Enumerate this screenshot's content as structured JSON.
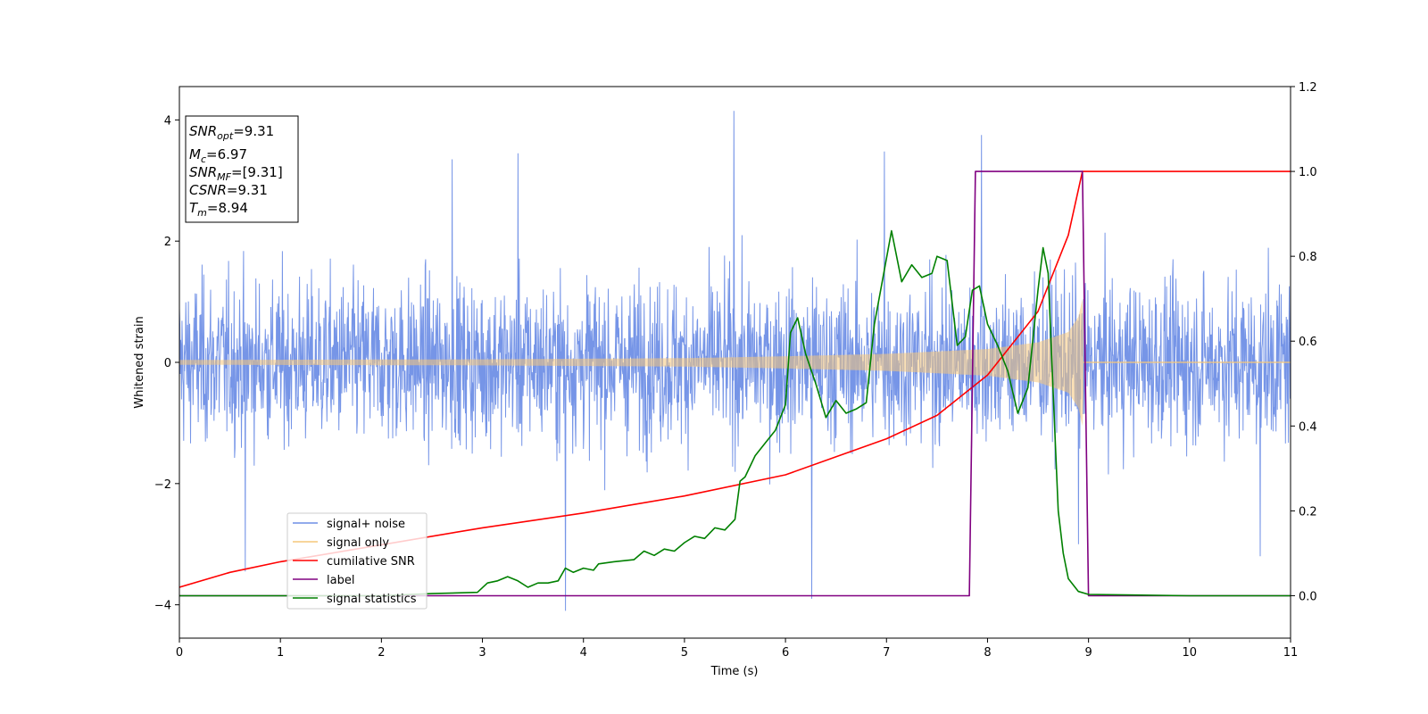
{
  "chart_data": {
    "type": "line",
    "xlabel": "Time (s)",
    "ylabel": "Whitened strain",
    "xlim": [
      0,
      11
    ],
    "ylim_left": [
      -4.55,
      4.55
    ],
    "ylim_right": [
      -0.1,
      1.2
    ],
    "x_ticks": [
      0,
      1,
      2,
      3,
      4,
      5,
      6,
      7,
      8,
      9,
      10,
      11
    ],
    "y_left_ticks": [
      -4,
      -2,
      0,
      2,
      4
    ],
    "y_right_ticks": [
      0.0,
      0.2,
      0.4,
      0.6,
      0.8,
      1.0,
      1.2
    ],
    "grid": false,
    "legend_position": "lower-left",
    "info_box": {
      "snr_opt": {
        "main": "SNR",
        "sub": "opt",
        "value": "=9.31"
      },
      "mc": {
        "main": "M",
        "sub": "c",
        "value": "=6.97"
      },
      "snr_mf": {
        "main": "SNR",
        "sub": "MF",
        "value": "=[9.31]"
      },
      "csnr": {
        "main": "CSNR",
        "value": "=9.31"
      },
      "tm": {
        "main": "T",
        "sub": "m",
        "value": "=8.94"
      }
    },
    "series": [
      {
        "name": "signal+ noise",
        "axis": "left",
        "color": "#6f8fe6",
        "approx_amplitude": 1.8,
        "spikes": [
          [
            5.49,
            4.15
          ],
          [
            6.26,
            -3.9
          ],
          [
            3.82,
            -4.1
          ],
          [
            7.94,
            3.75
          ],
          [
            6.98,
            3.48
          ],
          [
            3.35,
            3.45
          ],
          [
            2.7,
            3.35
          ],
          [
            0.65,
            -3.45
          ],
          [
            8.9,
            -3.0
          ],
          [
            10.7,
            -3.2
          ]
        ]
      },
      {
        "name": "signal only",
        "axis": "left",
        "color": "#f5c77a",
        "envelope": [
          [
            0,
            0.04
          ],
          [
            3,
            0.05
          ],
          [
            5,
            0.07
          ],
          [
            6,
            0.1
          ],
          [
            7,
            0.14
          ],
          [
            8,
            0.22
          ],
          [
            8.5,
            0.33
          ],
          [
            8.8,
            0.5
          ],
          [
            8.9,
            0.75
          ],
          [
            8.94,
            1.05
          ],
          [
            8.96,
            0
          ]
        ]
      },
      {
        "name": "cumilative SNR",
        "axis": "right",
        "color": "#ff0000",
        "points": [
          [
            0,
            0.02
          ],
          [
            0.5,
            0.055
          ],
          [
            1,
            0.08
          ],
          [
            2,
            0.12
          ],
          [
            3,
            0.16
          ],
          [
            4,
            0.195
          ],
          [
            5,
            0.235
          ],
          [
            6,
            0.285
          ],
          [
            7,
            0.37
          ],
          [
            7.5,
            0.425
          ],
          [
            8,
            0.52
          ],
          [
            8.5,
            0.67
          ],
          [
            8.8,
            0.85
          ],
          [
            8.94,
            1.0
          ],
          [
            11,
            1.0
          ]
        ]
      },
      {
        "name": "label",
        "axis": "right",
        "color": "#800080",
        "points": [
          [
            0,
            0.0
          ],
          [
            7.82,
            0.0
          ],
          [
            7.88,
            1.0
          ],
          [
            8.94,
            1.0
          ],
          [
            9.0,
            0.0
          ],
          [
            11,
            0.0
          ]
        ]
      },
      {
        "name": "signal statistics",
        "axis": "right",
        "color": "#008000",
        "points": [
          [
            0,
            0.0
          ],
          [
            1,
            0.0
          ],
          [
            2,
            0.0
          ],
          [
            2.5,
            0.005
          ],
          [
            2.95,
            0.008
          ],
          [
            3.05,
            0.03
          ],
          [
            3.15,
            0.035
          ],
          [
            3.25,
            0.045
          ],
          [
            3.35,
            0.035
          ],
          [
            3.45,
            0.02
          ],
          [
            3.55,
            0.03
          ],
          [
            3.65,
            0.03
          ],
          [
            3.75,
            0.035
          ],
          [
            3.82,
            0.065
          ],
          [
            3.9,
            0.055
          ],
          [
            4.0,
            0.065
          ],
          [
            4.1,
            0.06
          ],
          [
            4.15,
            0.075
          ],
          [
            4.3,
            0.08
          ],
          [
            4.5,
            0.085
          ],
          [
            4.6,
            0.105
          ],
          [
            4.7,
            0.095
          ],
          [
            4.8,
            0.11
          ],
          [
            4.9,
            0.105
          ],
          [
            5.0,
            0.125
          ],
          [
            5.1,
            0.14
          ],
          [
            5.2,
            0.135
          ],
          [
            5.3,
            0.16
          ],
          [
            5.4,
            0.155
          ],
          [
            5.5,
            0.18
          ],
          [
            5.55,
            0.27
          ],
          [
            5.6,
            0.28
          ],
          [
            5.7,
            0.33
          ],
          [
            5.8,
            0.36
          ],
          [
            5.9,
            0.39
          ],
          [
            5.95,
            0.42
          ],
          [
            6.0,
            0.45
          ],
          [
            6.05,
            0.62
          ],
          [
            6.12,
            0.655
          ],
          [
            6.2,
            0.57
          ],
          [
            6.3,
            0.5
          ],
          [
            6.4,
            0.42
          ],
          [
            6.5,
            0.46
          ],
          [
            6.6,
            0.43
          ],
          [
            6.7,
            0.44
          ],
          [
            6.8,
            0.455
          ],
          [
            6.88,
            0.64
          ],
          [
            6.95,
            0.73
          ],
          [
            7.05,
            0.86
          ],
          [
            7.15,
            0.74
          ],
          [
            7.25,
            0.78
          ],
          [
            7.35,
            0.75
          ],
          [
            7.45,
            0.76
          ],
          [
            7.5,
            0.8
          ],
          [
            7.6,
            0.79
          ],
          [
            7.7,
            0.59
          ],
          [
            7.78,
            0.61
          ],
          [
            7.85,
            0.72
          ],
          [
            7.92,
            0.73
          ],
          [
            8.0,
            0.64
          ],
          [
            8.1,
            0.59
          ],
          [
            8.2,
            0.53
          ],
          [
            8.3,
            0.43
          ],
          [
            8.4,
            0.49
          ],
          [
            8.5,
            0.72
          ],
          [
            8.55,
            0.82
          ],
          [
            8.6,
            0.76
          ],
          [
            8.65,
            0.48
          ],
          [
            8.7,
            0.2
          ],
          [
            8.75,
            0.1
          ],
          [
            8.8,
            0.04
          ],
          [
            8.9,
            0.01
          ],
          [
            9.0,
            0.003
          ],
          [
            10,
            0.0
          ],
          [
            11,
            0.0
          ]
        ]
      }
    ]
  }
}
